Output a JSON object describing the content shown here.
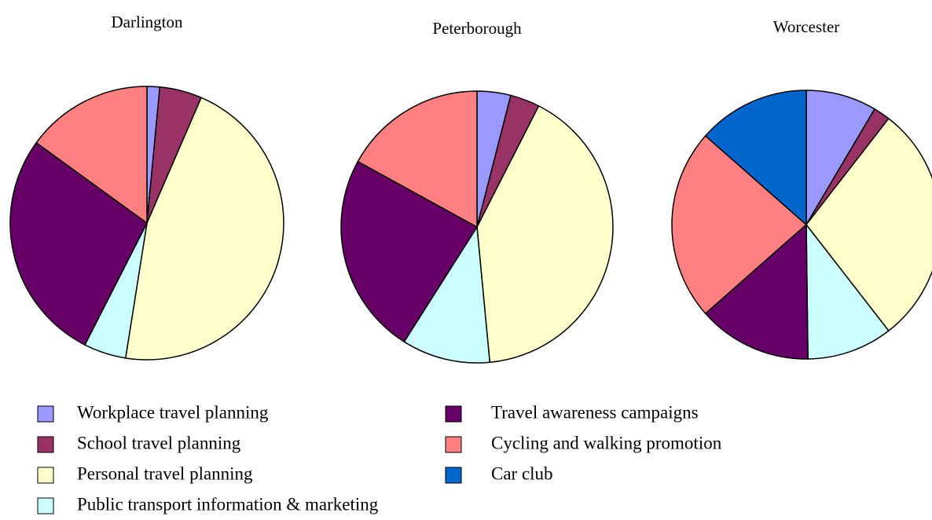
{
  "chart_data": [
    {
      "type": "pie",
      "title": "Darlington",
      "categories": [
        "Workplace travel planning",
        "School travel planning",
        "Personal travel planning",
        "Public transport information & marketing",
        "Travel awareness campaigns",
        "Cycling and walking promotion"
      ],
      "values": [
        1.5,
        5,
        46,
        5,
        27.5,
        15
      ],
      "colors": [
        "#9999ff",
        "#993366",
        "#ffffcc",
        "#ccffff",
        "#660066",
        "#ff8080"
      ]
    },
    {
      "type": "pie",
      "title": "Peterborough",
      "categories": [
        "Workplace travel planning",
        "School travel planning",
        "Personal travel planning",
        "Public transport information & marketing",
        "Travel awareness campaigns",
        "Cycling and walking promotion"
      ],
      "values": [
        4,
        3.5,
        41,
        10.5,
        24,
        17
      ],
      "colors": [
        "#9999ff",
        "#993366",
        "#ffffcc",
        "#ccffff",
        "#660066",
        "#ff8080"
      ]
    },
    {
      "type": "pie",
      "title": "Worcester",
      "categories": [
        "Workplace travel planning",
        "School travel planning",
        "Personal travel planning",
        "Public transport information & marketing",
        "Travel awareness campaigns",
        "Cycling and walking promotion",
        "Car club"
      ],
      "values": [
        8.5,
        2,
        29,
        10.3,
        13.7,
        23,
        13.5
      ],
      "colors": [
        "#9999ff",
        "#993366",
        "#ffffcc",
        "#ccffff",
        "#660066",
        "#ff8080",
        "#0066cc"
      ]
    }
  ]
}
